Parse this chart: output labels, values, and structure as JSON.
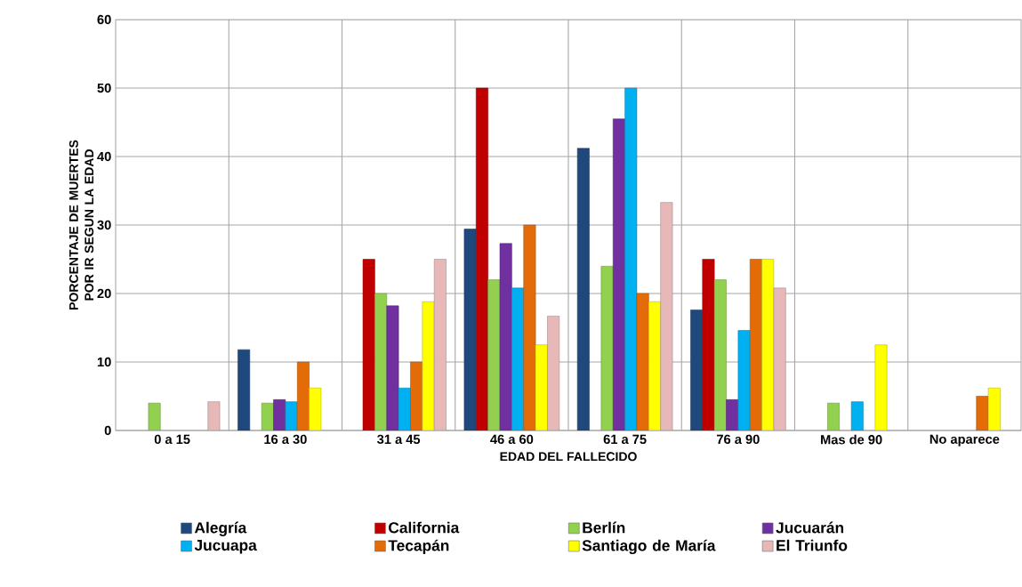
{
  "chart_data": {
    "type": "bar",
    "xlabel": "EDAD DEL FALLECIDO",
    "ylabel": "PORCENTAJE DE MUERTES POR IR SEGUN LA EDAD",
    "categories": [
      "0 a 15",
      "16 a 30",
      "31 a 45",
      "46 a 60",
      "61 a 75",
      "76 a 90",
      "Mas de 90",
      "No aparece"
    ],
    "ylim": [
      0,
      60
    ],
    "yticks": [
      0,
      10,
      20,
      30,
      40,
      50,
      60
    ],
    "grid": true,
    "legend": "bottom",
    "series": [
      {
        "name": "Alegría",
        "color": "#1f497d",
        "values": [
          null,
          11.8,
          null,
          29.4,
          41.2,
          17.6,
          null,
          null
        ]
      },
      {
        "name": "California",
        "color": "#c00000",
        "values": [
          null,
          null,
          25,
          50,
          null,
          25,
          null,
          null
        ]
      },
      {
        "name": "Berlín",
        "color": "#92d050",
        "values": [
          4,
          4,
          20,
          22,
          24,
          22,
          4,
          null
        ]
      },
      {
        "name": "Jucuarán",
        "color": "#7030a0",
        "values": [
          null,
          4.5,
          18.2,
          27.3,
          45.5,
          4.5,
          null,
          null
        ]
      },
      {
        "name": "Jucuapa",
        "color": "#00b0f0",
        "values": [
          null,
          4.2,
          6.2,
          20.8,
          50,
          14.6,
          4.2,
          null
        ]
      },
      {
        "name": "Tecapán",
        "color": "#e36c09",
        "values": [
          null,
          10,
          10,
          30,
          20,
          25,
          null,
          5
        ]
      },
      {
        "name": "Santiago de María",
        "color": "#ffff00",
        "values": [
          null,
          6.2,
          18.8,
          12.5,
          18.8,
          25,
          12.5,
          6.2
        ]
      },
      {
        "name": "El Triunfo",
        "color": "#e6b9b8",
        "values": [
          4.2,
          null,
          25,
          16.7,
          33.3,
          20.8,
          null,
          null
        ]
      }
    ]
  }
}
